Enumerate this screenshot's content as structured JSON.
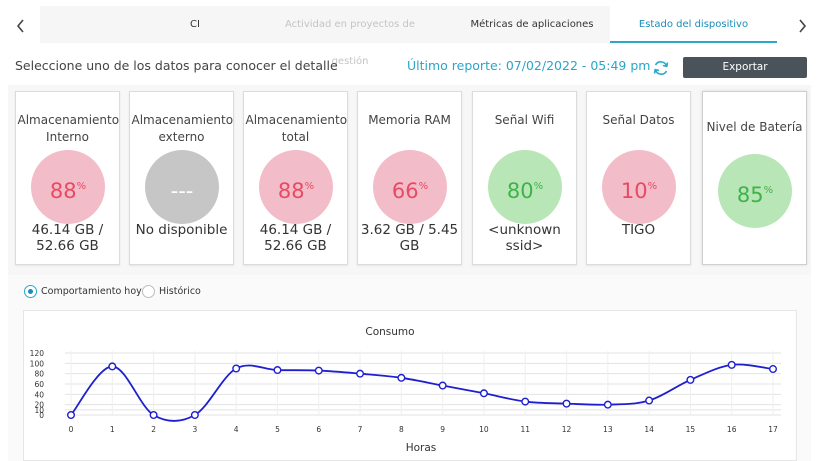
{
  "tabs": {
    "prev_icon": "chevron-left-icon",
    "next_icon": "chevron-right-icon",
    "items": [
      {
        "label": "CI",
        "state": "normal"
      },
      {
        "label": "Actividad en proyectos de gestión",
        "state": "dim"
      },
      {
        "label": "Métricas de aplicaciones",
        "state": "normal"
      },
      {
        "label": "Estado del dispositivo",
        "state": "active"
      }
    ]
  },
  "header": {
    "subtitle": "Seleccione uno de los datos para conocer el detalle",
    "last_report": "Último reporte: 07/02/2022 - 05:49 pm",
    "refresh_icon": "refresh-icon",
    "export_label": "Exportar"
  },
  "cards": [
    {
      "title": "Almacenamiento Interno",
      "percent": "88",
      "unit": "%",
      "status": "red",
      "value": "46.14 GB / 52.66 GB"
    },
    {
      "title": "Almacenamiento externo",
      "percent": "---",
      "unit": "",
      "status": "gray",
      "value": "No disponible"
    },
    {
      "title": "Almacenamiento total",
      "percent": "88",
      "unit": "%",
      "status": "red",
      "value": "46.14 GB / 52.66 GB"
    },
    {
      "title": "Memoria RAM",
      "percent": "66",
      "unit": "%",
      "status": "red",
      "value": "3.62 GB / 5.45 GB"
    },
    {
      "title": "Señal Wifi",
      "percent": "80",
      "unit": "%",
      "status": "green",
      "value": "<unknown ssid>"
    },
    {
      "title": "Señal Datos",
      "percent": "10",
      "unit": "%",
      "status": "red",
      "value": "TIGO"
    },
    {
      "title": "Nivel de Batería",
      "percent": "85",
      "unit": "%",
      "status": "green",
      "value": ""
    }
  ],
  "view_options": {
    "today_label": "Comportamiento hoy",
    "history_label": "Histórico",
    "selected": "today"
  },
  "colors": {
    "accent": "#2aa7c9",
    "red": "#e84a63",
    "green": "#3fb34a",
    "line": "#1f1fcf"
  },
  "chart_data": {
    "type": "line",
    "title": "Consumo",
    "xlabel": "Horas",
    "ylabel": "",
    "x": [
      0,
      1,
      2,
      3,
      4,
      5,
      6,
      7,
      8,
      9,
      10,
      11,
      12,
      13,
      14,
      15,
      16,
      17
    ],
    "series": [
      {
        "values": [
          0,
          94,
          0,
          0,
          90,
          87,
          86,
          80,
          72,
          57,
          42,
          26,
          22,
          20,
          28,
          68,
          97,
          89
        ]
      }
    ],
    "yticks": [
      0,
      10,
      20,
      40,
      60,
      80,
      100,
      120
    ],
    "ylim": [
      0,
      120
    ],
    "grid": true,
    "legend": "none"
  }
}
